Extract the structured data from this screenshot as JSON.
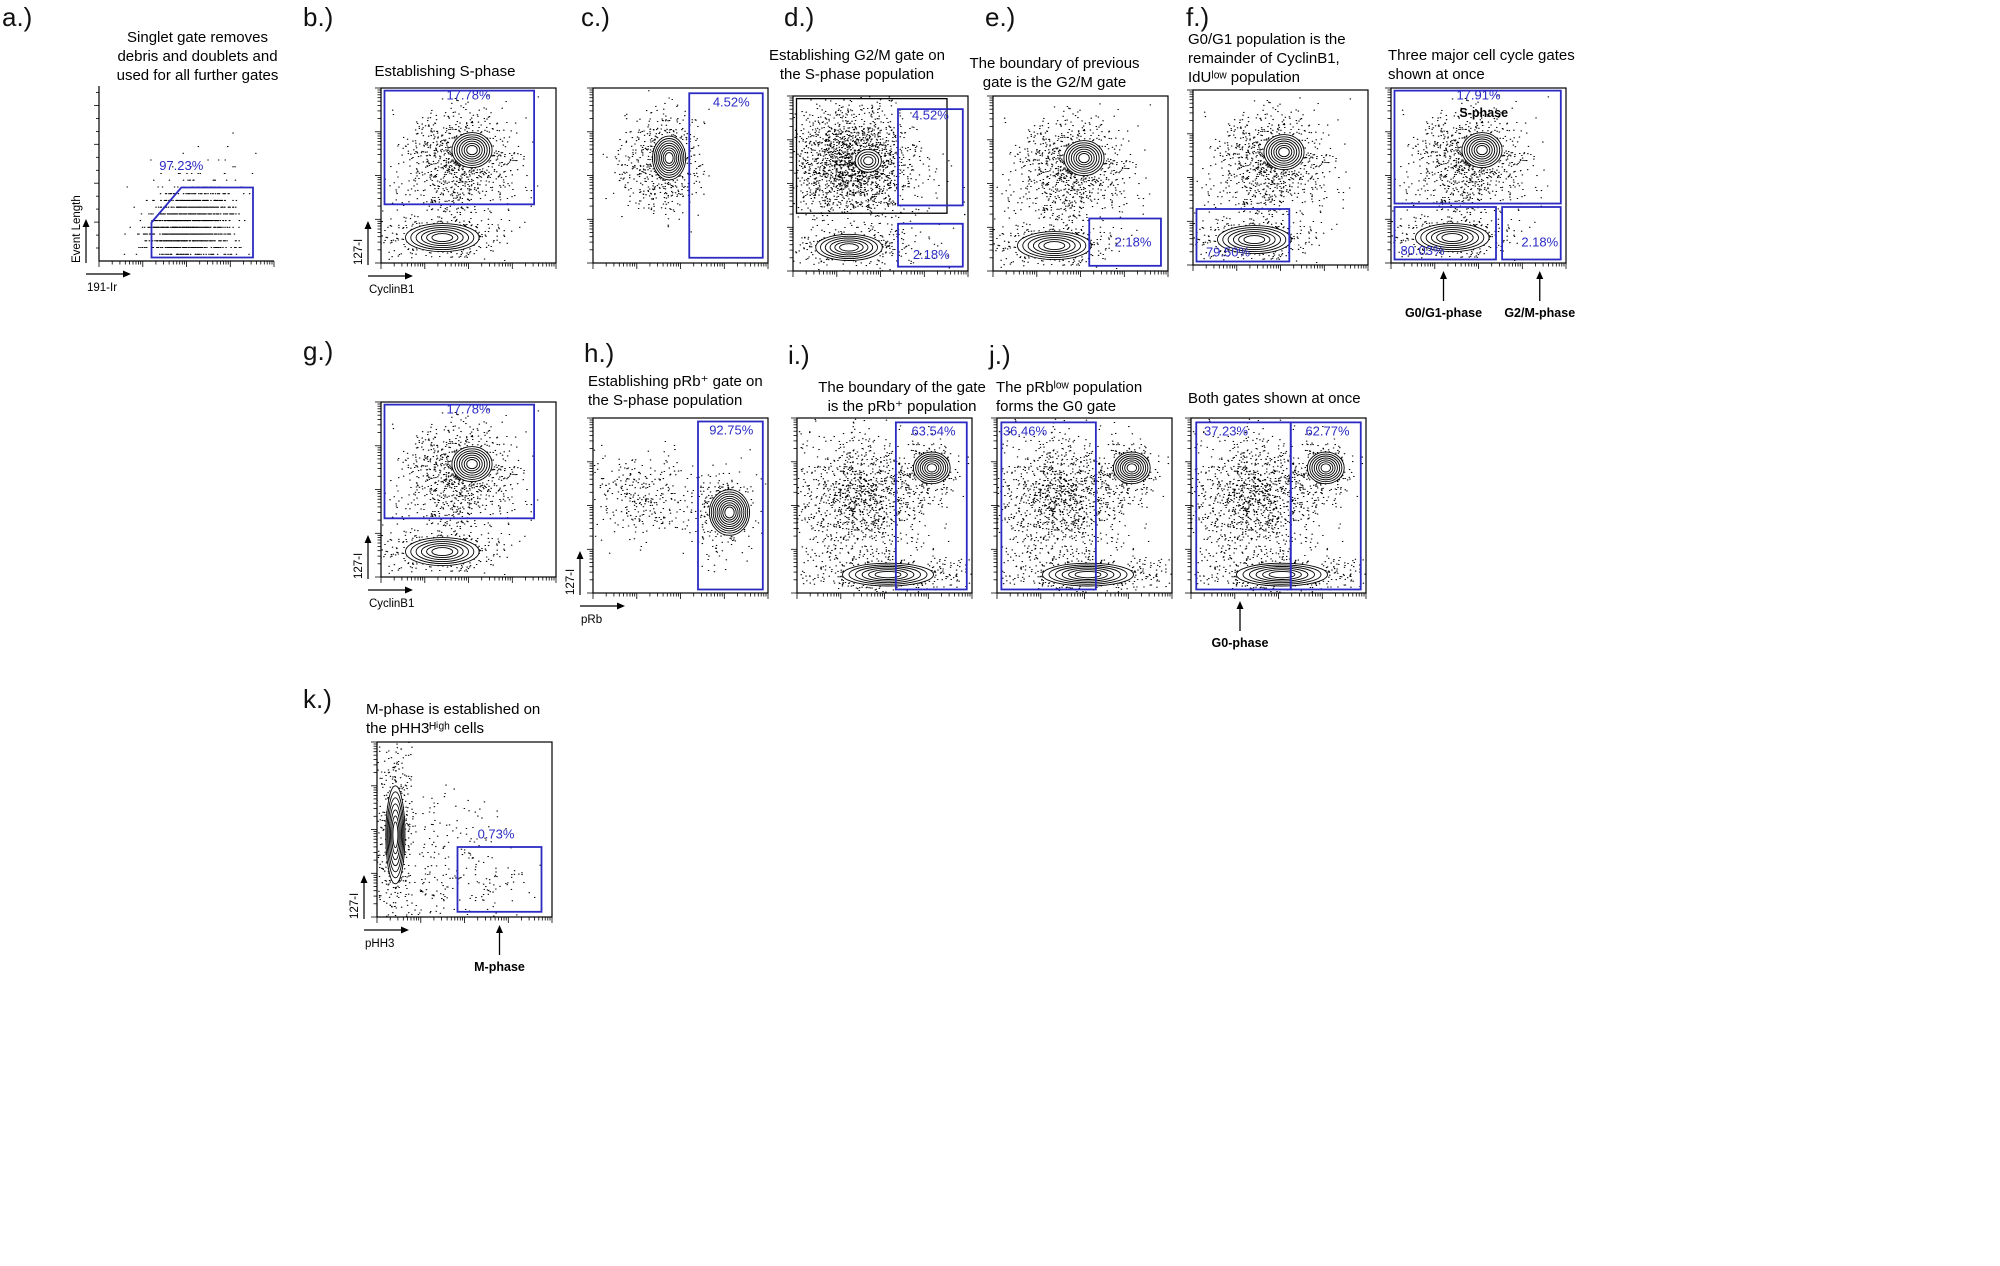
{
  "figure": {
    "background": "#ffffff",
    "gate_color": "#2b2bc4",
    "ink_color": "#000000"
  },
  "chart_data": [
    {
      "id": "a",
      "type": "flow-scatter",
      "letter": "a.)",
      "title": "Singlet gate removes\ndebris and doublets and\nused for all further gates",
      "xlabel": "191-Ir",
      "ylabel": "Event Length",
      "axis_mode": "open",
      "x_scale": "log",
      "y_scale": "linear",
      "gates": [
        {
          "shape": "polygon",
          "points": [
            [
              0.3,
              0.02
            ],
            [
              0.3,
              0.22
            ],
            [
              0.47,
              0.42
            ],
            [
              0.88,
              0.42
            ],
            [
              0.88,
              0.02
            ]
          ],
          "label": "97.23%",
          "label_pos": [
            0.47,
            0.52
          ]
        }
      ],
      "populations": [
        {
          "kind": "dots",
          "cx": 0.55,
          "cy": 0.21,
          "sx": 0.11,
          "sy": 0.1,
          "n": 1050,
          "quant": 26,
          "seed": 11
        },
        {
          "kind": "dots",
          "cx": 0.4,
          "cy": 0.16,
          "sx": 0.1,
          "sy": 0.06,
          "n": 240,
          "quant": 26,
          "seed": 12
        },
        {
          "kind": "dots",
          "cx": 0.58,
          "cy": 0.42,
          "sx": 0.16,
          "sy": 0.12,
          "n": 70,
          "quant": 26,
          "seed": 13
        }
      ]
    },
    {
      "id": "b",
      "type": "flow-contour",
      "letter": "b.)",
      "title": "Establishing S-phase",
      "xlabel": "CyclinB1",
      "ylabel": "127-I",
      "axis_mode": "box",
      "x_scale": "log",
      "y_scale": "log",
      "gates": [
        {
          "shape": "rect",
          "x1": 0.02,
          "y1": 0.335,
          "x2": 0.875,
          "y2": 0.985,
          "label": "17.78%",
          "label_pos": [
            0.5,
            0.935
          ]
        }
      ],
      "populations": [
        {
          "kind": "dots",
          "cx": 0.45,
          "cy": 0.6,
          "sx": 0.155,
          "sy": 0.135,
          "n": 850,
          "seed": 2
        },
        {
          "kind": "dots",
          "cx": 0.38,
          "cy": 0.38,
          "sx": 0.18,
          "sy": 0.09,
          "n": 140,
          "seed": 3
        },
        {
          "kind": "dots",
          "cx": 0.35,
          "cy": 0.145,
          "sx": 0.17,
          "sy": 0.055,
          "n": 420,
          "seed": 5
        },
        {
          "kind": "rings",
          "cx": 0.52,
          "cy": 0.645,
          "rx": 0.115,
          "ry": 0.1,
          "levels": 7,
          "seed": 1
        },
        {
          "kind": "rings",
          "cx": 0.35,
          "cy": 0.145,
          "rx": 0.21,
          "ry": 0.08,
          "levels": 6,
          "seed": 4
        }
      ]
    },
    {
      "id": "c",
      "type": "flow-contour",
      "letter": "c.)",
      "title": "",
      "xlabel": "",
      "ylabel": "",
      "axis_mode": "box",
      "x_scale": "log",
      "y_scale": "log",
      "gates": [
        {
          "shape": "rect",
          "x1": 0.55,
          "y1": 0.03,
          "x2": 0.97,
          "y2": 0.97,
          "label": "4.52%",
          "label_pos": [
            0.79,
            0.895
          ]
        }
      ],
      "populations": [
        {
          "kind": "dots",
          "cx": 0.42,
          "cy": 0.58,
          "sx": 0.1,
          "sy": 0.15,
          "n": 520,
          "seed": 15
        },
        {
          "kind": "dots",
          "cx": 0.24,
          "cy": 0.58,
          "sx": 0.08,
          "sy": 0.12,
          "n": 100,
          "seed": 16
        },
        {
          "kind": "rings",
          "cx": 0.435,
          "cy": 0.6,
          "rx": 0.095,
          "ry": 0.125,
          "levels": 8,
          "seed": 14
        }
      ]
    },
    {
      "id": "d",
      "type": "flow-contour",
      "letter": "d.)",
      "title": "Establishing G2/M gate on\nthe S-phase population",
      "xlabel": "",
      "ylabel": "",
      "axis_mode": "box",
      "x_scale": "log",
      "y_scale": "log",
      "black_gates": [
        {
          "shape": "rect",
          "x1": 0.02,
          "y1": 0.33,
          "x2": 0.88,
          "y2": 0.985
        }
      ],
      "gates": [
        {
          "shape": "rect",
          "x1": 0.6,
          "y1": 0.375,
          "x2": 0.97,
          "y2": 0.925,
          "label": "4.52%",
          "label_pos": [
            0.785,
            0.865
          ]
        },
        {
          "shape": "rect",
          "x1": 0.6,
          "y1": 0.025,
          "x2": 0.97,
          "y2": 0.27,
          "label": "2.18%",
          "label_pos": [
            0.79,
            0.07
          ]
        }
      ],
      "populations": [
        {
          "kind": "dots",
          "cx": 0.33,
          "cy": 0.62,
          "sx": 0.17,
          "sy": 0.155,
          "n": 1900,
          "seed": 6
        },
        {
          "kind": "dots",
          "cx": 0.32,
          "cy": 0.135,
          "sx": 0.16,
          "sy": 0.05,
          "n": 380,
          "seed": 9
        },
        {
          "kind": "dots",
          "cx": 0.62,
          "cy": 0.32,
          "sx": 0.18,
          "sy": 0.14,
          "n": 110,
          "seed": 10
        },
        {
          "kind": "rings",
          "cx": 0.43,
          "cy": 0.63,
          "rx": 0.075,
          "ry": 0.065,
          "levels": 4,
          "seed": 7
        },
        {
          "kind": "rings",
          "cx": 0.32,
          "cy": 0.135,
          "rx": 0.19,
          "ry": 0.075,
          "levels": 6,
          "seed": 8
        }
      ]
    },
    {
      "id": "e",
      "type": "flow-contour",
      "letter": "e.)",
      "title": "The boundary of previous\ngate is the G2/M gate",
      "xlabel": "",
      "ylabel": "",
      "axis_mode": "box",
      "x_scale": "log",
      "y_scale": "log",
      "gates": [
        {
          "shape": "rect",
          "x1": 0.55,
          "y1": 0.03,
          "x2": 0.96,
          "y2": 0.3,
          "label": "2.18%",
          "label_pos": [
            0.8,
            0.14
          ]
        }
      ],
      "populations": [
        {
          "kind": "dots",
          "cx": 0.45,
          "cy": 0.6,
          "sx": 0.155,
          "sy": 0.135,
          "n": 850,
          "seed": 2
        },
        {
          "kind": "dots",
          "cx": 0.38,
          "cy": 0.38,
          "sx": 0.18,
          "sy": 0.09,
          "n": 140,
          "seed": 3
        },
        {
          "kind": "dots",
          "cx": 0.35,
          "cy": 0.145,
          "sx": 0.17,
          "sy": 0.055,
          "n": 420,
          "seed": 5
        },
        {
          "kind": "rings",
          "cx": 0.52,
          "cy": 0.645,
          "rx": 0.115,
          "ry": 0.1,
          "levels": 7,
          "seed": 1
        },
        {
          "kind": "rings",
          "cx": 0.35,
          "cy": 0.145,
          "rx": 0.21,
          "ry": 0.08,
          "levels": 6,
          "seed": 4
        }
      ]
    },
    {
      "id": "f1",
      "type": "flow-contour",
      "letter": "f.)",
      "title": "G0/G1 population is the\nremainder of CyclinB1,\nIdUˡᵒʷ population",
      "xlabel": "",
      "ylabel": "",
      "axis_mode": "box",
      "x_scale": "log",
      "y_scale": "log",
      "gates": [
        {
          "shape": "rect",
          "x1": 0.02,
          "y1": 0.02,
          "x2": 0.55,
          "y2": 0.32,
          "label": "79.50%",
          "label_pos": [
            0.2,
            0.05
          ]
        }
      ],
      "populations": [
        {
          "kind": "dots",
          "cx": 0.45,
          "cy": 0.6,
          "sx": 0.155,
          "sy": 0.135,
          "n": 850,
          "seed": 2
        },
        {
          "kind": "dots",
          "cx": 0.38,
          "cy": 0.38,
          "sx": 0.18,
          "sy": 0.09,
          "n": 140,
          "seed": 3
        },
        {
          "kind": "dots",
          "cx": 0.35,
          "cy": 0.145,
          "sx": 0.17,
          "sy": 0.055,
          "n": 420,
          "seed": 5
        },
        {
          "kind": "rings",
          "cx": 0.52,
          "cy": 0.645,
          "rx": 0.115,
          "ry": 0.1,
          "levels": 7,
          "seed": 1
        },
        {
          "kind": "rings",
          "cx": 0.35,
          "cy": 0.145,
          "rx": 0.21,
          "ry": 0.08,
          "levels": 6,
          "seed": 4
        }
      ]
    },
    {
      "id": "f2",
      "type": "flow-contour",
      "letter": "",
      "title": "Three major cell cycle gates\nshown at once",
      "xlabel": "",
      "ylabel": "",
      "axis_mode": "box",
      "x_scale": "log",
      "y_scale": "log",
      "gates": [
        {
          "shape": "rect",
          "x1": 0.02,
          "y1": 0.34,
          "x2": 0.97,
          "y2": 0.985,
          "label": "17.91%",
          "label_pos": [
            0.5,
            0.935
          ]
        },
        {
          "shape": "rect",
          "x1": 0.02,
          "y1": 0.02,
          "x2": 0.6,
          "y2": 0.32,
          "label": "80.03%",
          "label_pos": [
            0.18,
            0.045
          ]
        },
        {
          "shape": "rect",
          "x1": 0.635,
          "y1": 0.02,
          "x2": 0.97,
          "y2": 0.32,
          "label": "2.18%",
          "label_pos": [
            0.85,
            0.095
          ]
        }
      ],
      "annotations": [
        {
          "text": "S-phase",
          "pos": [
            0.53,
            0.835
          ],
          "bold": true
        }
      ],
      "bottom_arrows": [
        {
          "label": "G0/G1-phase",
          "x": 0.3
        },
        {
          "label": "G2/M-phase",
          "x": 0.85
        }
      ],
      "populations": [
        {
          "kind": "dots",
          "cx": 0.45,
          "cy": 0.6,
          "sx": 0.155,
          "sy": 0.135,
          "n": 850,
          "seed": 2
        },
        {
          "kind": "dots",
          "cx": 0.38,
          "cy": 0.38,
          "sx": 0.18,
          "sy": 0.09,
          "n": 140,
          "seed": 3
        },
        {
          "kind": "dots",
          "cx": 0.35,
          "cy": 0.145,
          "sx": 0.17,
          "sy": 0.055,
          "n": 420,
          "seed": 5
        },
        {
          "kind": "rings",
          "cx": 0.52,
          "cy": 0.645,
          "rx": 0.115,
          "ry": 0.1,
          "levels": 7,
          "seed": 1
        },
        {
          "kind": "rings",
          "cx": 0.35,
          "cy": 0.145,
          "rx": 0.21,
          "ry": 0.08,
          "levels": 6,
          "seed": 4
        }
      ]
    },
    {
      "id": "g",
      "type": "flow-contour",
      "letter": "g.)",
      "title": "",
      "xlabel": "CyclinB1",
      "ylabel": "127-I",
      "axis_mode": "box",
      "x_scale": "log",
      "y_scale": "log",
      "gates": [
        {
          "shape": "rect",
          "x1": 0.02,
          "y1": 0.335,
          "x2": 0.875,
          "y2": 0.985,
          "label": "17.78%",
          "label_pos": [
            0.5,
            0.935
          ]
        }
      ],
      "populations": [
        {
          "kind": "dots",
          "cx": 0.45,
          "cy": 0.6,
          "sx": 0.155,
          "sy": 0.135,
          "n": 850,
          "seed": 2
        },
        {
          "kind": "dots",
          "cx": 0.38,
          "cy": 0.38,
          "sx": 0.18,
          "sy": 0.09,
          "n": 140,
          "seed": 3
        },
        {
          "kind": "dots",
          "cx": 0.35,
          "cy": 0.145,
          "sx": 0.17,
          "sy": 0.055,
          "n": 420,
          "seed": 5
        },
        {
          "kind": "rings",
          "cx": 0.52,
          "cy": 0.645,
          "rx": 0.115,
          "ry": 0.1,
          "levels": 7,
          "seed": 1
        },
        {
          "kind": "rings",
          "cx": 0.35,
          "cy": 0.145,
          "rx": 0.21,
          "ry": 0.08,
          "levels": 6,
          "seed": 4
        }
      ]
    },
    {
      "id": "h",
      "type": "flow-contour",
      "letter": "h.)",
      "title": "Establishing pRb⁺ gate on\nthe S-phase population",
      "xlabel": "pRb",
      "ylabel": "127-I",
      "axis_mode": "box",
      "x_scale": "log",
      "y_scale": "log",
      "gates": [
        {
          "shape": "rect",
          "x1": 0.6,
          "y1": 0.02,
          "x2": 0.97,
          "y2": 0.98,
          "label": "92.75%",
          "label_pos": [
            0.79,
            0.905
          ]
        }
      ],
      "populations": [
        {
          "kind": "dots",
          "cx": 0.28,
          "cy": 0.55,
          "sx": 0.15,
          "sy": 0.12,
          "n": 320,
          "seed": 17
        },
        {
          "kind": "dots",
          "cx": 0.72,
          "cy": 0.47,
          "sx": 0.1,
          "sy": 0.13,
          "n": 280,
          "seed": 19
        },
        {
          "kind": "rings",
          "cx": 0.78,
          "cy": 0.46,
          "rx": 0.115,
          "ry": 0.13,
          "levels": 9,
          "seed": 18
        }
      ]
    },
    {
      "id": "i",
      "type": "flow-contour",
      "letter": "i.)",
      "title": "The boundary of the gate\nis the pRb⁺ population",
      "xlabel": "",
      "ylabel": "",
      "axis_mode": "box",
      "x_scale": "log",
      "y_scale": "log",
      "gates": [
        {
          "shape": "rect",
          "x1": 0.565,
          "y1": 0.02,
          "x2": 0.97,
          "y2": 0.975,
          "label": "63.54%",
          "label_pos": [
            0.78,
            0.9
          ]
        }
      ],
      "populations": [
        {
          "kind": "dots",
          "cx": 0.36,
          "cy": 0.55,
          "sx": 0.19,
          "sy": 0.17,
          "n": 1250,
          "seed": 20
        },
        {
          "kind": "dots",
          "cx": 0.74,
          "cy": 0.7,
          "sx": 0.09,
          "sy": 0.08,
          "n": 240,
          "seed": 22
        },
        {
          "kind": "dots",
          "cx": 0.52,
          "cy": 0.105,
          "sx": 0.24,
          "sy": 0.05,
          "n": 460,
          "seed": 24
        },
        {
          "kind": "rings",
          "cx": 0.77,
          "cy": 0.715,
          "rx": 0.105,
          "ry": 0.09,
          "levels": 7,
          "seed": 21
        },
        {
          "kind": "rings",
          "cx": 0.52,
          "cy": 0.105,
          "rx": 0.26,
          "ry": 0.065,
          "levels": 6,
          "seed": 23
        }
      ]
    },
    {
      "id": "j1",
      "type": "flow-contour",
      "letter": "j.)",
      "title": "The pRbˡᵒʷ population\nforms the G0 gate",
      "xlabel": "",
      "ylabel": "",
      "axis_mode": "box",
      "x_scale": "log",
      "y_scale": "log",
      "gates": [
        {
          "shape": "rect",
          "x1": 0.025,
          "y1": 0.02,
          "x2": 0.565,
          "y2": 0.975,
          "label": "36.46%",
          "label_pos": [
            0.16,
            0.9
          ]
        }
      ],
      "populations": [
        {
          "kind": "dots",
          "cx": 0.36,
          "cy": 0.55,
          "sx": 0.19,
          "sy": 0.17,
          "n": 1250,
          "seed": 20
        },
        {
          "kind": "dots",
          "cx": 0.74,
          "cy": 0.7,
          "sx": 0.09,
          "sy": 0.08,
          "n": 240,
          "seed": 22
        },
        {
          "kind": "dots",
          "cx": 0.52,
          "cy": 0.105,
          "sx": 0.24,
          "sy": 0.05,
          "n": 460,
          "seed": 24
        },
        {
          "kind": "rings",
          "cx": 0.77,
          "cy": 0.715,
          "rx": 0.105,
          "ry": 0.09,
          "levels": 7,
          "seed": 21
        },
        {
          "kind": "rings",
          "cx": 0.52,
          "cy": 0.105,
          "rx": 0.26,
          "ry": 0.065,
          "levels": 6,
          "seed": 23
        }
      ]
    },
    {
      "id": "j2",
      "type": "flow-contour",
      "letter": "",
      "title": "Both gates shown at once",
      "xlabel": "",
      "ylabel": "",
      "axis_mode": "box",
      "x_scale": "log",
      "y_scale": "log",
      "gates": [
        {
          "shape": "rect",
          "x1": 0.03,
          "y1": 0.02,
          "x2": 0.57,
          "y2": 0.975,
          "label": "37.23%",
          "label_pos": [
            0.2,
            0.9
          ]
        },
        {
          "shape": "rect",
          "x1": 0.57,
          "y1": 0.02,
          "x2": 0.97,
          "y2": 0.975,
          "label": "62.77%",
          "label_pos": [
            0.78,
            0.9
          ]
        }
      ],
      "bottom_arrows": [
        {
          "label": "G0-phase",
          "x": 0.28
        }
      ],
      "populations": [
        {
          "kind": "dots",
          "cx": 0.36,
          "cy": 0.55,
          "sx": 0.19,
          "sy": 0.17,
          "n": 1250,
          "seed": 20
        },
        {
          "kind": "dots",
          "cx": 0.74,
          "cy": 0.7,
          "sx": 0.09,
          "sy": 0.08,
          "n": 240,
          "seed": 22
        },
        {
          "kind": "dots",
          "cx": 0.52,
          "cy": 0.105,
          "sx": 0.24,
          "sy": 0.05,
          "n": 460,
          "seed": 24
        },
        {
          "kind": "rings",
          "cx": 0.77,
          "cy": 0.715,
          "rx": 0.105,
          "ry": 0.09,
          "levels": 7,
          "seed": 21
        },
        {
          "kind": "rings",
          "cx": 0.52,
          "cy": 0.105,
          "rx": 0.26,
          "ry": 0.065,
          "levels": 6,
          "seed": 23
        }
      ]
    },
    {
      "id": "k",
      "type": "flow-contour",
      "letter": "k.)",
      "title": "M-phase is established on\nthe pHH3ᴴⁱᵍʰ cells",
      "xlabel": "pHH3",
      "ylabel": "127-I",
      "axis_mode": "box",
      "x_scale": "log",
      "y_scale": "log",
      "gates": [
        {
          "shape": "rect",
          "x1": 0.46,
          "y1": 0.03,
          "x2": 0.94,
          "y2": 0.4,
          "label": "0.73%",
          "label_pos": [
            0.68,
            0.45
          ]
        }
      ],
      "bottom_arrows": [
        {
          "label": "M-phase",
          "x": 0.7
        }
      ],
      "populations": [
        {
          "kind": "dots",
          "cx": 0.1,
          "cy": 0.5,
          "sx": 0.045,
          "sy": 0.24,
          "n": 520,
          "seed": 26
        },
        {
          "kind": "dots",
          "cx": 0.33,
          "cy": 0.33,
          "sx": 0.2,
          "sy": 0.2,
          "n": 230,
          "seed": 27
        },
        {
          "kind": "dots",
          "cx": 0.62,
          "cy": 0.18,
          "sx": 0.15,
          "sy": 0.09,
          "n": 80,
          "seed": 28
        },
        {
          "kind": "rings",
          "cx": 0.105,
          "cy": 0.47,
          "rx": 0.055,
          "ry": 0.28,
          "levels": 7,
          "seed": 25
        }
      ]
    }
  ]
}
